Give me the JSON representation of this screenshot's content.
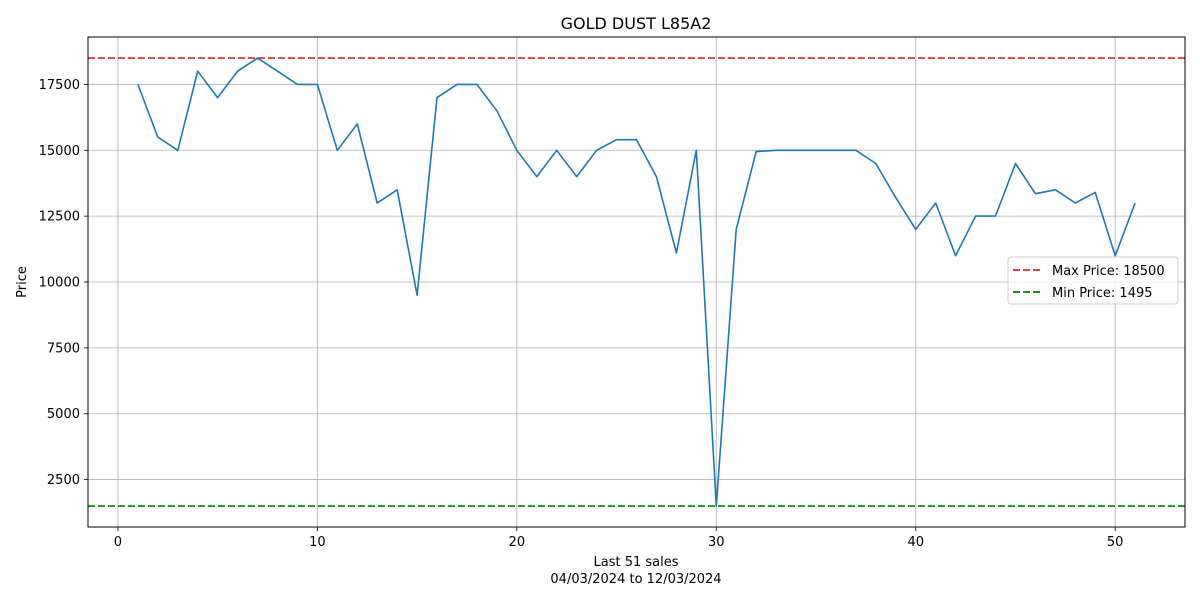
{
  "chart_data": {
    "type": "line",
    "title": "GOLD DUST L85A2",
    "xlabel": "Last 51 sales",
    "xlabel_sub": "04/03/2024 to 12/03/2024",
    "ylabel": "Price",
    "xlim": [
      -1.5,
      53.5
    ],
    "ylim": [
      700,
      19300
    ],
    "xticks": [
      0,
      10,
      20,
      30,
      40,
      50
    ],
    "yticks": [
      2500,
      5000,
      7500,
      10000,
      12500,
      15000,
      17500
    ],
    "grid": true,
    "legend_position": "center-right",
    "series": [
      {
        "color": "#1f77b4",
        "x": [
          1,
          2,
          3,
          4,
          5,
          6,
          7,
          8,
          9,
          10,
          11,
          12,
          13,
          14,
          15,
          16,
          17,
          18,
          19,
          20,
          21,
          22,
          23,
          24,
          25,
          26,
          27,
          28,
          29,
          30,
          31,
          32,
          33,
          34,
          35,
          36,
          37,
          38,
          39,
          40,
          41,
          42,
          43,
          44,
          45,
          46,
          47,
          48,
          49,
          50,
          51
        ],
        "values": [
          17500,
          15500,
          15000,
          18000,
          17000,
          18000,
          18500,
          18000,
          17500,
          17500,
          15000,
          16000,
          13000,
          13500,
          9500,
          17000,
          17500,
          17500,
          16500,
          15000,
          14000,
          15000,
          14000,
          15000,
          15400,
          15400,
          14000,
          11100,
          15000,
          1495,
          12000,
          14950,
          15000,
          15000,
          15000,
          15000,
          15000,
          14500,
          13200,
          12000,
          13000,
          11000,
          12500,
          12500,
          14500,
          13350,
          13500,
          13000,
          13400,
          11000,
          13000
        ]
      }
    ],
    "reference_lines": [
      {
        "name": "Max Price: 18500",
        "value": 18500,
        "color": "#d62728",
        "style": "dashed"
      },
      {
        "name": "Min Price: 1495",
        "value": 1495,
        "color": "#008000",
        "style": "dashed"
      }
    ]
  }
}
